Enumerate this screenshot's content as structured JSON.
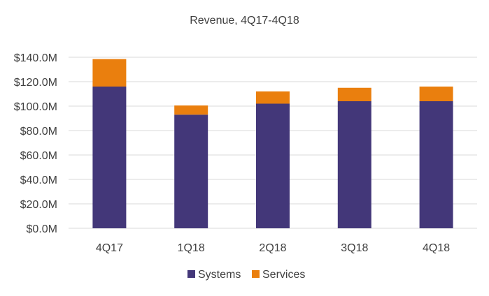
{
  "chart_data": {
    "type": "bar",
    "stacked": true,
    "title": "Revenue, 4Q17-4Q18",
    "categories": [
      "4Q17",
      "1Q18",
      "2Q18",
      "3Q18",
      "4Q18"
    ],
    "series": [
      {
        "name": "Systems",
        "color": "#433779",
        "values": [
          116.0,
          93.0,
          102.0,
          104.0,
          104.0
        ]
      },
      {
        "name": "Services",
        "color": "#ea7f0e",
        "values": [
          22.5,
          7.5,
          10.0,
          11.0,
          12.0
        ]
      }
    ],
    "ylim": [
      0,
      140
    ],
    "yticks": [
      0,
      20,
      40,
      60,
      80,
      100,
      120,
      140
    ],
    "ytick_labels": [
      "$0.0M",
      "$20.0M",
      "$40.0M",
      "$60.0M",
      "$80.0M",
      "$100.0M",
      "$120.0M",
      "$140.0M"
    ],
    "xlabel": "",
    "ylabel": "",
    "grid": true,
    "legend": "bottom-center"
  }
}
